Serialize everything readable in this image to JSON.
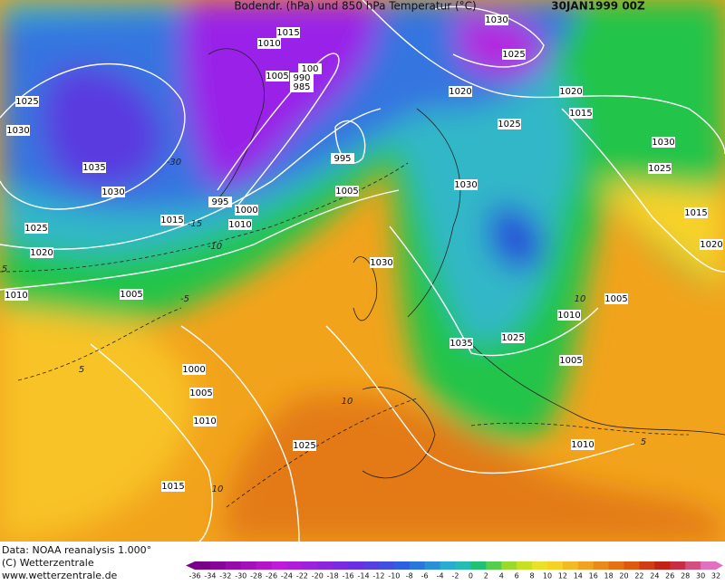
{
  "header": {
    "title": "Bodendr. (hPa) und 850 hPa Temperatur (°C)",
    "date": "30JAN1999 00Z"
  },
  "footer": {
    "lines": [
      "Data: NOAA reanalysis 1.000°",
      "(C) Wetterzentrale",
      "www.wetterzentrale.de"
    ]
  },
  "isobar_labels": [
    "1015",
    "1010",
    "1005",
    "100",
    "990",
    "985",
    "1025",
    "1030",
    "1035",
    "1030",
    "1025",
    "1020",
    "1010",
    "1005",
    "1015",
    "1010",
    "1000",
    "995",
    "1005",
    "995",
    "1030",
    "1025",
    "1020",
    "1025",
    "1030",
    "1020",
    "1015",
    "1030",
    "1025",
    "1015",
    "1020",
    "1005",
    "1010",
    "1025",
    "1035",
    "1005",
    "1000",
    "1005",
    "1010",
    "1025",
    "1010",
    "1015",
    "1030"
  ],
  "temperature_labels": [
    "-30",
    "-15",
    "-10",
    "-5",
    "5",
    "5",
    "10",
    "10",
    "10",
    "5"
  ],
  "colorbar": {
    "labels": [
      -36,
      -34,
      -32,
      -30,
      -28,
      -26,
      -24,
      -22,
      -20,
      -18,
      -16,
      -14,
      -12,
      -10,
      -8,
      -6,
      -4,
      -2,
      0,
      2,
      4,
      6,
      8,
      10,
      12,
      14,
      16,
      18,
      20,
      22,
      24,
      26,
      28,
      30,
      32
    ]
  }
}
